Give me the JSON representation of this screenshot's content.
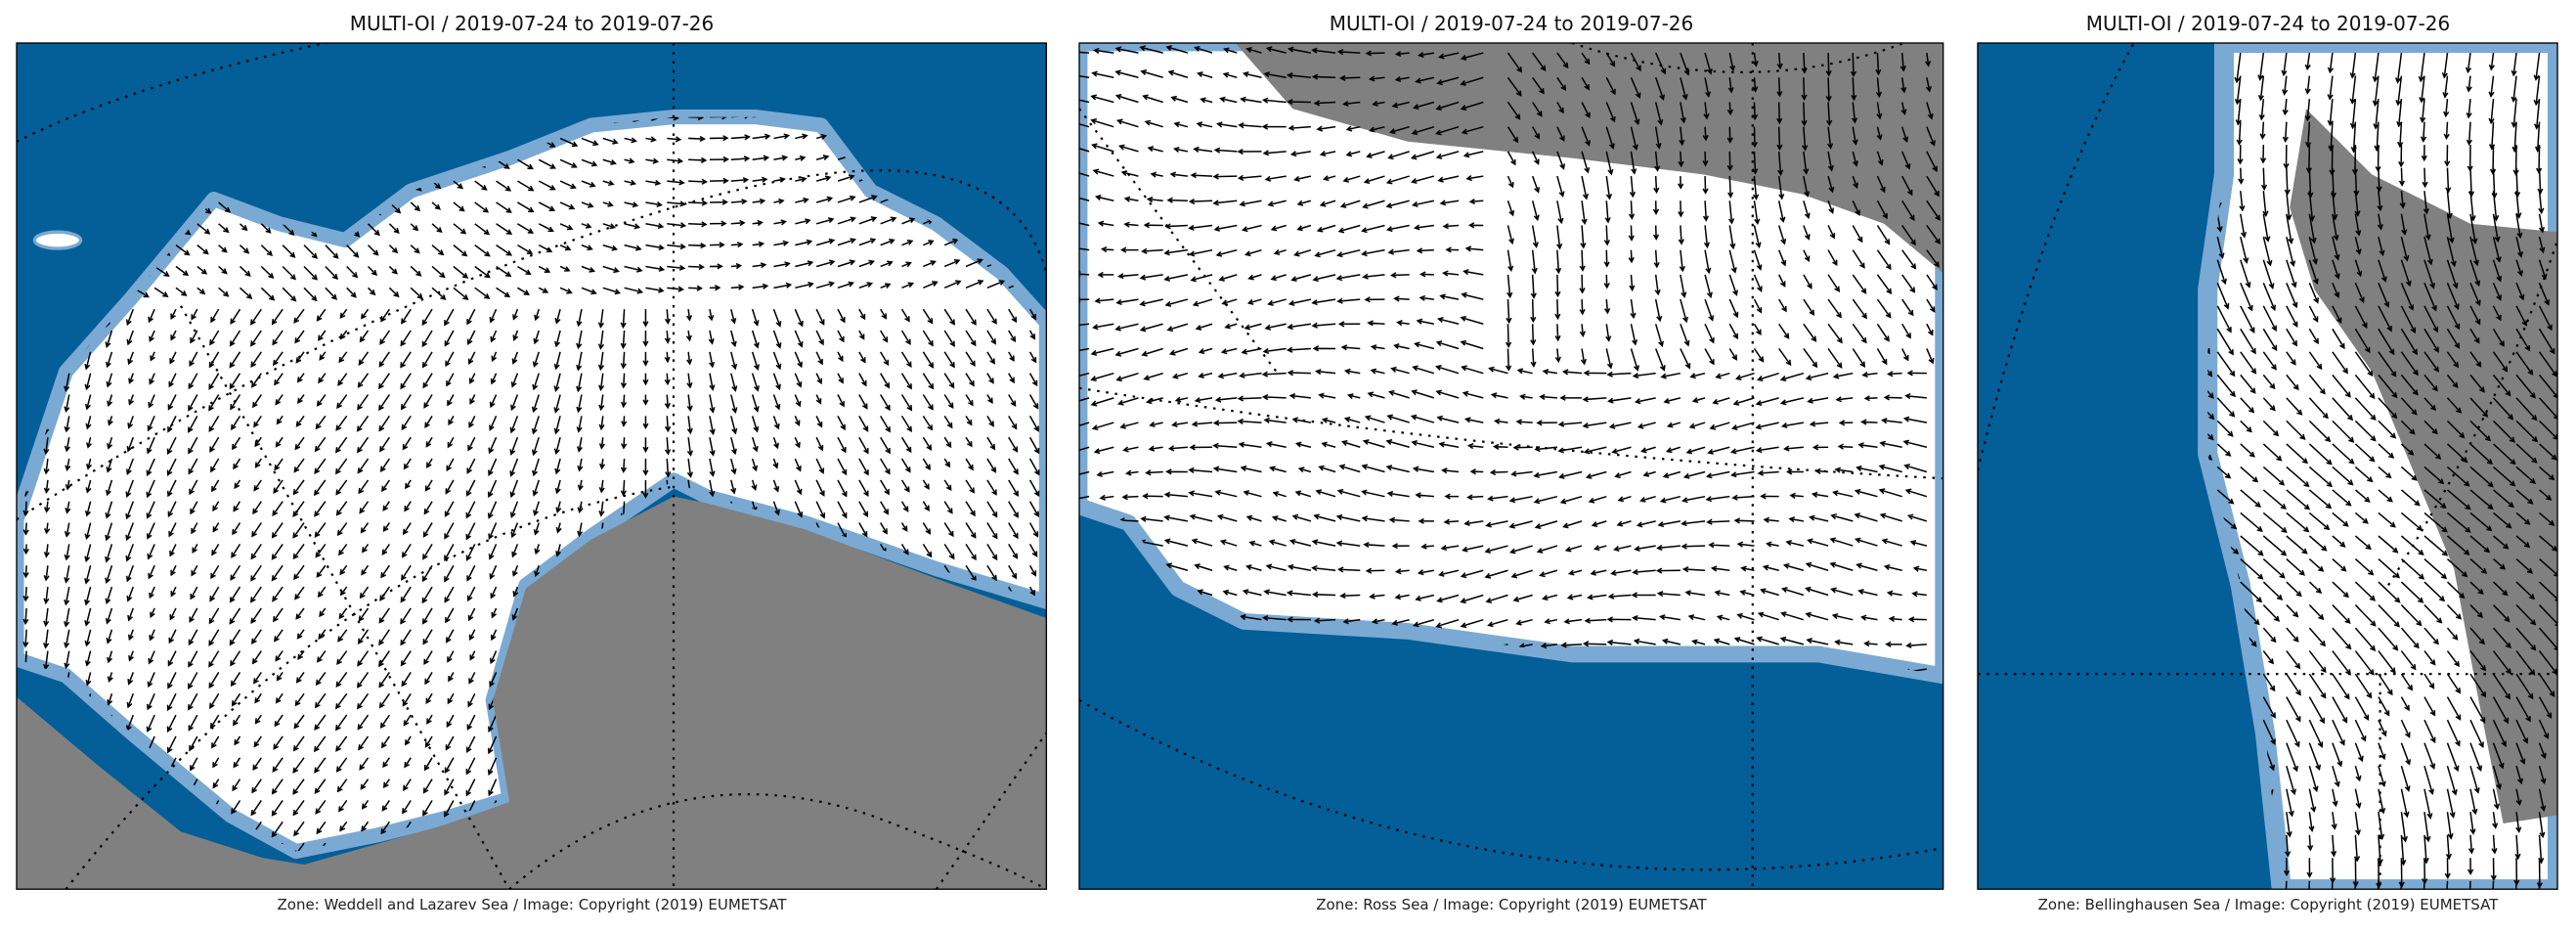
{
  "panels": [
    {
      "title": "MULTI-OI / 2019-07-24 to 2019-07-26",
      "caption": "Zone: Weddell and Lazarev Sea / Image: Copyright (2019) EUMETSAT"
    },
    {
      "title": "MULTI-OI / 2019-07-24 to 2019-07-26",
      "caption": "Zone: Ross Sea / Image: Copyright (2019) EUMETSAT"
    },
    {
      "title": "MULTI-OI / 2019-07-24 to 2019-07-26",
      "caption": "Zone: Bellinghausen Sea / Image: Copyright (2019) EUMETSAT"
    }
  ]
}
